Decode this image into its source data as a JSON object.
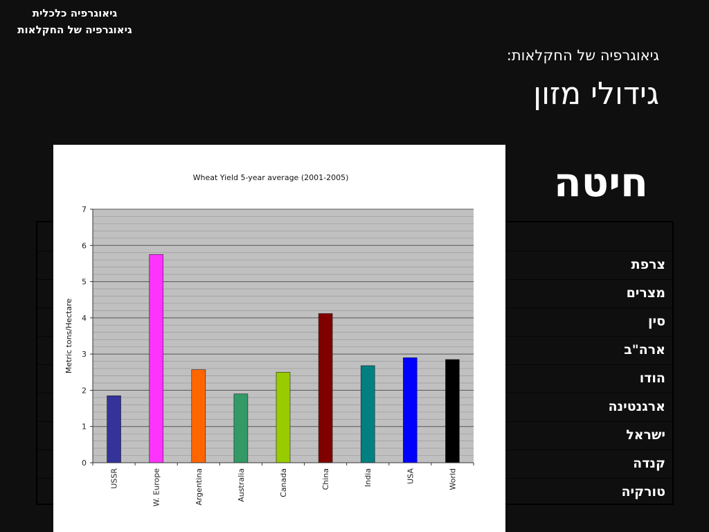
{
  "header": {
    "line1": "גיאוגרפיה כלכלית",
    "line2": "גיאוגרפיה של החקלאות",
    "kicker": "גיאוגרפיה של החקלאות:",
    "title": "גידולי מזון",
    "subtitle": "חיטה"
  },
  "table": {
    "rows": [
      "צרפת",
      "מצרים",
      "סין",
      "ארה\"ב",
      "הודו",
      "ארגנטינה",
      "ישראל",
      "קנדה",
      "טורקיה"
    ]
  },
  "chart_data": {
    "type": "bar",
    "title": "Wheat Yield 5-year average (2001-2005)",
    "xlabel": "",
    "ylabel": "Metric tons/Hectare",
    "ylim": [
      0,
      7
    ],
    "yticks": [
      "0",
      "1",
      "2",
      "3",
      "4",
      "5",
      "6",
      "7"
    ],
    "categories": [
      "USSR",
      "W. Europe",
      "Argentina",
      "Australia",
      "Canada",
      "China",
      "India",
      "USA",
      "World"
    ],
    "values": [
      1.85,
      5.75,
      2.57,
      1.9,
      2.5,
      4.12,
      2.68,
      2.9,
      2.85
    ],
    "colors": [
      "#333399",
      "#ff33ff",
      "#ff6600",
      "#339966",
      "#99cc00",
      "#800000",
      "#008080",
      "#0000ff",
      "#000000"
    ],
    "grid": true,
    "plot_background": "#c0c0c0"
  }
}
